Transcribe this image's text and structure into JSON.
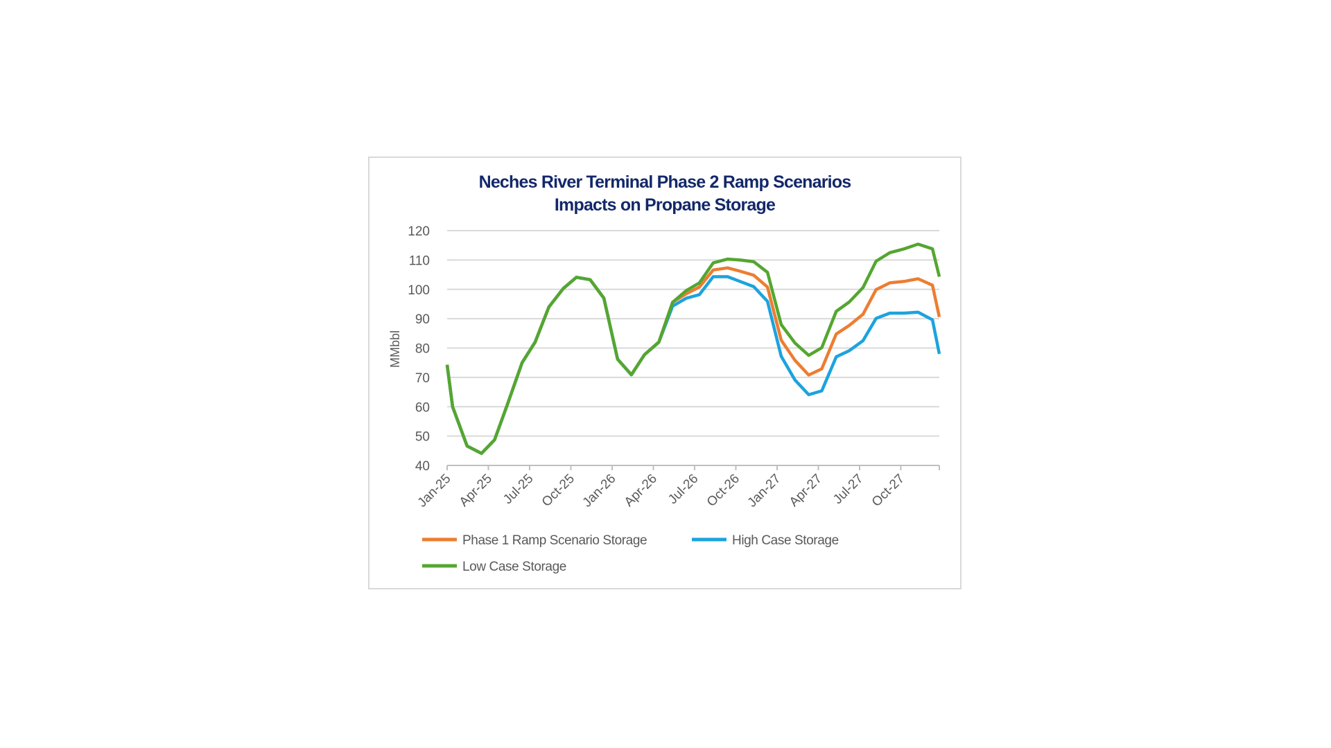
{
  "chart_data": {
    "type": "line",
    "title": [
      "Neches River Terminal Phase 2 Ramp Scenarios",
      "Impacts on Propane Storage"
    ],
    "xlabel": "",
    "ylabel": "MMbbl",
    "ylim": [
      40,
      120
    ],
    "yticks": [
      40,
      50,
      60,
      70,
      80,
      90,
      100,
      110,
      120
    ],
    "xlim_months_since_jan25": [
      0,
      35.8
    ],
    "xtick_labels": [
      "Jan-25",
      "Apr-25",
      "Jul-25",
      "Oct-25",
      "Jan-26",
      "Apr-26",
      "Jul-26",
      "Oct-26",
      "Jan-27",
      "Apr-27",
      "Jul-27",
      "Oct-27"
    ],
    "grid": true,
    "legend_position": "bottom",
    "x": [
      0,
      0.4,
      1.45,
      2.5,
      3.45,
      4.4,
      5.45,
      6.4,
      7.4,
      8.45,
      9.4,
      10.4,
      11.4,
      12.4,
      13.4,
      14.35,
      15.4,
      16.4,
      17.4,
      18.35,
      19.35,
      20.4,
      21.3,
      22.3,
      23.3,
      24.3,
      25.3,
      26.3,
      27.25,
      28.3,
      29.25,
      30.25,
      31.2,
      32.2,
      33.25,
      34.25,
      35.3,
      35.8
    ],
    "series": [
      {
        "name": "Phase 1 Ramp Scenario Storage",
        "color": "#ED7D31",
        "values": [
          74.3,
          60,
          46.6,
          44.1,
          48.7,
          61,
          75,
          82,
          94,
          100.3,
          104.1,
          103.3,
          97,
          76.2,
          70.9,
          77.7,
          82,
          95.6,
          98.5,
          100.8,
          106.6,
          107.3,
          106.2,
          104.8,
          100.8,
          82.7,
          75.8,
          70.8,
          72.9,
          84.8,
          87.7,
          91.5,
          99.9,
          102.2,
          102.7,
          103.6,
          101.4,
          90.6
        ]
      },
      {
        "name": "High Case Storage",
        "color": "#1CA3DE",
        "values": [
          74.3,
          60,
          46.6,
          44.1,
          48.7,
          61,
          75,
          82,
          94,
          100.3,
          104.1,
          103.3,
          97,
          76.2,
          70.9,
          77.7,
          82,
          94.3,
          97,
          98.2,
          104.3,
          104.3,
          102.7,
          100.9,
          95.9,
          77.2,
          69.1,
          64.1,
          65.4,
          77,
          79.1,
          82.5,
          90.1,
          91.9,
          91.9,
          92.2,
          89.6,
          78
        ]
      },
      {
        "name": "Low Case Storage",
        "color": "#54A630",
        "values": [
          74.3,
          60,
          46.6,
          44.1,
          48.7,
          61,
          75,
          82,
          94,
          100.3,
          104.1,
          103.3,
          97,
          76.2,
          70.9,
          77.7,
          82,
          95.6,
          99.6,
          102.2,
          109,
          110.3,
          110,
          109.4,
          105.8,
          88,
          81.7,
          77.5,
          80.1,
          92.5,
          95.7,
          100.6,
          109.6,
          112.5,
          113.8,
          115.4,
          113.8,
          104.3
        ]
      }
    ]
  }
}
